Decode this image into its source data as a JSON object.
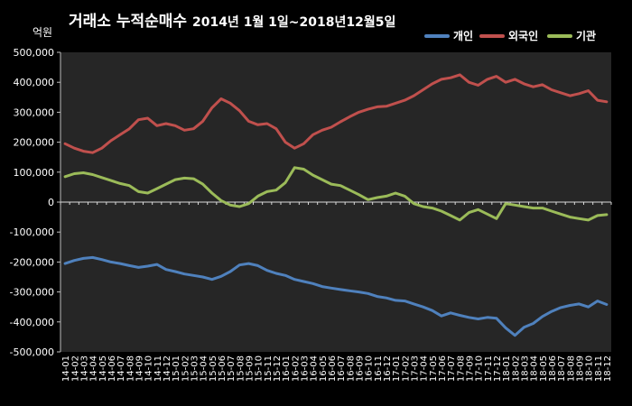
{
  "title": {
    "main": "거래소 누적순매수",
    "period": "2014년 1월 1일~2018년12월5일"
  },
  "chart_data": {
    "type": "line",
    "ylabel": "억원",
    "ylim": [
      -500000,
      500000
    ],
    "yticks": [
      500000,
      400000,
      300000,
      200000,
      100000,
      0,
      -100000,
      -200000,
      -300000,
      -400000,
      -500000
    ],
    "ytick_labels": [
      "500,000",
      "400,000",
      "300,000",
      "200,000",
      "100,000",
      "0",
      "-100,000",
      "-200,000",
      "-300,000",
      "-400,000",
      "-500,000"
    ],
    "legend_position": "top-right",
    "grid": false,
    "x": [
      "14-01",
      "14-02",
      "14-03",
      "14-04",
      "14-05",
      "14-06",
      "14-07",
      "14-08",
      "14-09",
      "14-10",
      "14-11",
      "14-12",
      "15-01",
      "15-02",
      "15-03",
      "15-04",
      "15-05",
      "15-06",
      "15-07",
      "15-08",
      "15-09",
      "15-10",
      "15-11",
      "15-12",
      "16-01",
      "16-02",
      "16-03",
      "16-04",
      "16-05",
      "16-06",
      "16-07",
      "16-08",
      "16-09",
      "16-10",
      "16-11",
      "16-12",
      "17-01",
      "17-02",
      "17-03",
      "17-04",
      "17-05",
      "17-06",
      "17-07",
      "17-08",
      "17-09",
      "17-10",
      "17-11",
      "17-12",
      "18-01",
      "18-02",
      "18-03",
      "18-04",
      "18-05",
      "18-06",
      "18-07",
      "18-08",
      "18-09",
      "18-10",
      "18-11",
      "18-12"
    ],
    "series": [
      {
        "name": "개인",
        "color": "#4f81bd",
        "values": [
          -205000,
          -195000,
          -188000,
          -185000,
          -192000,
          -200000,
          -205000,
          -212000,
          -218000,
          -214000,
          -208000,
          -225000,
          -232000,
          -240000,
          -245000,
          -250000,
          -258000,
          -248000,
          -232000,
          -210000,
          -205000,
          -212000,
          -228000,
          -238000,
          -245000,
          -258000,
          -265000,
          -272000,
          -282000,
          -287000,
          -292000,
          -296000,
          -300000,
          -305000,
          -315000,
          -320000,
          -328000,
          -330000,
          -340000,
          -350000,
          -362000,
          -380000,
          -370000,
          -378000,
          -385000,
          -390000,
          -385000,
          -388000,
          -420000,
          -445000,
          -418000,
          -405000,
          -382000,
          -365000,
          -352000,
          -345000,
          -340000,
          -350000,
          -330000,
          -342000
        ]
      },
      {
        "name": "외국인",
        "color": "#c0504d",
        "values": [
          195000,
          180000,
          170000,
          165000,
          180000,
          205000,
          225000,
          245000,
          275000,
          280000,
          255000,
          262000,
          255000,
          240000,
          245000,
          270000,
          315000,
          345000,
          330000,
          305000,
          270000,
          258000,
          262000,
          245000,
          200000,
          180000,
          195000,
          225000,
          240000,
          250000,
          268000,
          285000,
          300000,
          310000,
          318000,
          320000,
          330000,
          340000,
          355000,
          375000,
          395000,
          410000,
          415000,
          425000,
          400000,
          390000,
          410000,
          420000,
          400000,
          410000,
          395000,
          385000,
          392000,
          375000,
          365000,
          355000,
          362000,
          372000,
          340000,
          335000
        ]
      },
      {
        "name": "기관",
        "color": "#9bbb59",
        "values": [
          85000,
          95000,
          98000,
          92000,
          82000,
          72000,
          62000,
          55000,
          35000,
          30000,
          45000,
          60000,
          75000,
          80000,
          78000,
          60000,
          30000,
          5000,
          -10000,
          -15000,
          -5000,
          20000,
          35000,
          40000,
          65000,
          115000,
          110000,
          90000,
          75000,
          60000,
          55000,
          40000,
          25000,
          8000,
          15000,
          20000,
          30000,
          20000,
          -5000,
          -15000,
          -20000,
          -30000,
          -45000,
          -60000,
          -35000,
          -25000,
          -40000,
          -55000,
          -5000,
          -10000,
          -15000,
          -20000,
          -20000,
          -30000,
          -40000,
          -50000,
          -55000,
          -60000,
          -45000,
          -42000
        ]
      }
    ]
  }
}
